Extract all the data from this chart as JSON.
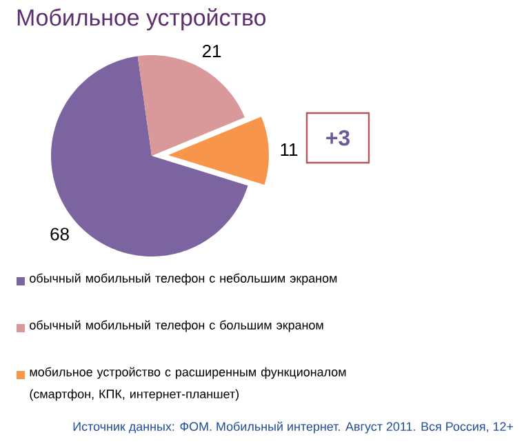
{
  "chart_data": {
    "type": "pie",
    "title": "Мобильное устройство",
    "categories": [
      "обычный мобильный телефон с небольшим экраном",
      "обычный мобильный телефон с большим экраном",
      "мобильное устройство с расширенным функционалом (смартфон, КПК, интернет-планшет)"
    ],
    "values": [
      68,
      21,
      11
    ],
    "colors": [
      "#7b64a0",
      "#d9989a",
      "#f7964a"
    ],
    "data_labels": true,
    "legend": "bottom",
    "marker": "square",
    "annotations": [
      "+3",
      "Источник данных: ФОМ. Мобильный интернет. Август 2011. Вся Россия, 12+"
    ]
  }
}
